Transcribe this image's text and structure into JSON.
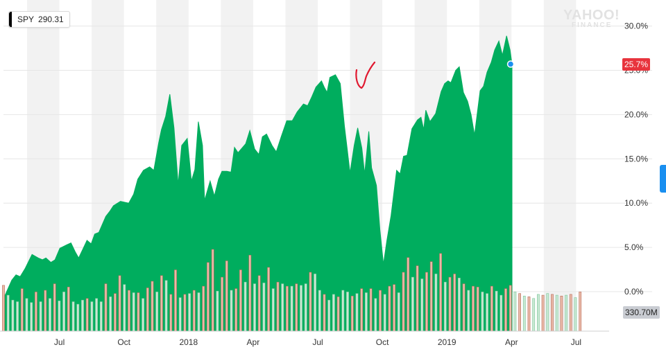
{
  "ticker": {
    "symbol": "SPY",
    "price": "290.31"
  },
  "watermark": {
    "line1": "YAHOO!",
    "line2": "FINANCE"
  },
  "current_badge": "25.7%",
  "volume_badge": "330.70M",
  "colors": {
    "area": "#00ad5e",
    "band": "#f2f2f2",
    "current": "#e8343d",
    "marker": "#1a8ff0",
    "annotation": "#e0182f",
    "volume_up": "#c8e7d2",
    "volume_down": "#e9b9a8"
  },
  "chart_data": {
    "type": "area",
    "title": "",
    "xlabel": "",
    "ylabel": "",
    "y_axis_side": "right",
    "y_unit": "%",
    "ylim": [
      -2,
      31
    ],
    "y_ticks": [
      0,
      5,
      10,
      15,
      20,
      25,
      30
    ],
    "y_tick_labels": [
      "0.0%",
      "5.0%",
      "10.0%",
      "15.0%",
      "20.0%",
      "25.0%",
      "30.0%"
    ],
    "x_range": [
      2017.2836,
      2019.6278
    ],
    "x_ticks": [
      {
        "x": 2017.5,
        "label": "Jul"
      },
      {
        "x": 2017.75,
        "label": "Oct"
      },
      {
        "x": 2018.0,
        "label": "2018"
      },
      {
        "x": 2018.25,
        "label": "Apr"
      },
      {
        "x": 2018.5,
        "label": "Jul"
      },
      {
        "x": 2018.75,
        "label": "Oct"
      },
      {
        "x": 2019.0,
        "label": "2019"
      },
      {
        "x": 2019.25,
        "label": "Apr"
      },
      {
        "x": 2019.5,
        "label": "Jul"
      }
    ],
    "grid": true,
    "legend": "none",
    "series": [
      {
        "values": [
          [
            2017.2836,
            -0.8
          ],
          [
            2017.3159,
            1.3
          ],
          [
            2017.3321,
            1.9
          ],
          [
            2017.3483,
            1.7
          ],
          [
            2017.3672,
            2.6
          ],
          [
            2017.3941,
            4.2
          ],
          [
            2017.4184,
            3.8
          ],
          [
            2017.4345,
            3.6
          ],
          [
            2017.448,
            3.8
          ],
          [
            2017.4669,
            3.3
          ],
          [
            2017.483,
            3.6
          ],
          [
            2017.5019,
            4.9
          ],
          [
            2017.5289,
            5.3
          ],
          [
            2017.545,
            5.5
          ],
          [
            2017.5612,
            4.5
          ],
          [
            2017.5746,
            3.8
          ],
          [
            2017.5908,
            4.8
          ],
          [
            2017.607,
            5.8
          ],
          [
            2017.6231,
            5.4
          ],
          [
            2017.6366,
            6.5
          ],
          [
            2017.6527,
            6.7
          ],
          [
            2017.6797,
            8.5
          ],
          [
            2017.6958,
            9.1
          ],
          [
            2017.7093,
            9.7
          ],
          [
            2017.7362,
            10.2
          ],
          [
            2017.7685,
            10.0
          ],
          [
            2017.7874,
            11.0
          ],
          [
            2017.8035,
            12.7
          ],
          [
            2017.8251,
            13.7
          ],
          [
            2017.8493,
            14.1
          ],
          [
            2017.8655,
            13.7
          ],
          [
            2017.8843,
            16.8
          ],
          [
            2017.8951,
            18.3
          ],
          [
            2017.9113,
            19.8
          ],
          [
            2017.9274,
            22.3
          ],
          [
            2017.9436,
            18.5
          ],
          [
            2017.9598,
            12.1
          ],
          [
            2017.9733,
            16.5
          ],
          [
            2017.9948,
            17.3
          ],
          [
            2018.011,
            12.5
          ],
          [
            2018.0244,
            13.8
          ],
          [
            2018.0379,
            19.2
          ],
          [
            2018.054,
            16.5
          ],
          [
            2018.0621,
            10.3
          ],
          [
            2018.0836,
            12.5
          ],
          [
            2018.0998,
            10.8
          ],
          [
            2018.116,
            12.7
          ],
          [
            2018.1294,
            13.6
          ],
          [
            2018.1483,
            13.6
          ],
          [
            2018.1644,
            13.5
          ],
          [
            2018.1779,
            16.3
          ],
          [
            2018.1914,
            15.7
          ],
          [
            2018.221,
            16.7
          ],
          [
            2018.2372,
            18.2
          ],
          [
            2018.256,
            16.1
          ],
          [
            2018.2722,
            15.5
          ],
          [
            2018.2857,
            17.5
          ],
          [
            2018.3018,
            17.8
          ],
          [
            2018.3234,
            16.5
          ],
          [
            2018.3395,
            15.8
          ],
          [
            2018.3584,
            17.5
          ],
          [
            2018.3799,
            19.3
          ],
          [
            2018.4015,
            19.3
          ],
          [
            2018.4203,
            20.3
          ],
          [
            2018.4446,
            21.2
          ],
          [
            2018.4607,
            21.0
          ],
          [
            2018.4769,
            22.0
          ],
          [
            2018.493,
            23.1
          ],
          [
            2018.5146,
            23.8
          ],
          [
            2018.5253,
            23.1
          ],
          [
            2018.5361,
            22.5
          ],
          [
            2018.5469,
            24.2
          ],
          [
            2018.5684,
            24.5
          ],
          [
            2018.5873,
            23.5
          ],
          [
            2018.6034,
            18.7
          ],
          [
            2018.6142,
            16.1
          ],
          [
            2018.6249,
            13.4
          ],
          [
            2018.6411,
            16.5
          ],
          [
            2018.6546,
            18.5
          ],
          [
            2018.6707,
            16.2
          ],
          [
            2018.6815,
            13.3
          ],
          [
            2018.6976,
            18.1
          ],
          [
            2018.7084,
            14.0
          ],
          [
            2018.7272,
            12.0
          ],
          [
            2018.7407,
            7.0
          ],
          [
            2018.7542,
            3.1
          ],
          [
            2018.7676,
            5.8
          ],
          [
            2018.7838,
            8.6
          ],
          [
            2018.8053,
            13.7
          ],
          [
            2018.8188,
            13.3
          ],
          [
            2018.8323,
            15.3
          ],
          [
            2018.8457,
            15.4
          ],
          [
            2018.8646,
            18.4
          ],
          [
            2018.8861,
            19.4
          ],
          [
            2018.8996,
            19.7
          ],
          [
            2018.9104,
            18.3
          ],
          [
            2018.9184,
            20.5
          ],
          [
            2018.9346,
            19.2
          ],
          [
            2018.9561,
            20.1
          ],
          [
            2018.9777,
            22.6
          ],
          [
            2018.9911,
            23.5
          ],
          [
            2019.0046,
            23.8
          ],
          [
            2019.0154,
            23.6
          ],
          [
            2019.0342,
            25.0
          ],
          [
            2019.0477,
            25.4
          ],
          [
            2019.0638,
            22.5
          ],
          [
            2019.08,
            21.5
          ],
          [
            2019.0935,
            20.0
          ],
          [
            2019.1069,
            17.7
          ],
          [
            2019.1285,
            22.7
          ],
          [
            2019.1419,
            23.2
          ],
          [
            2019.1554,
            24.8
          ],
          [
            2019.1716,
            25.9
          ],
          [
            2019.185,
            27.3
          ],
          [
            2019.2012,
            28.3
          ],
          [
            2019.2147,
            26.7
          ],
          [
            2019.2308,
            28.9
          ],
          [
            2019.2443,
            27.3
          ],
          [
            2019.252,
            25.7
          ]
        ]
      }
    ],
    "current": {
      "x": 2019.252,
      "y": 25.7,
      "label": "25.7%"
    },
    "volume": {
      "label": "330.70M",
      "x_start": 2017.2836,
      "x_step": 0.018,
      "rel_height": [
        0.56,
        0.44,
        0.38,
        0.36,
        0.52,
        0.4,
        0.35,
        0.48,
        0.36,
        0.5,
        0.4,
        0.58,
        0.37,
        0.48,
        0.54,
        0.36,
        0.33,
        0.38,
        0.4,
        0.36,
        0.4,
        0.36,
        0.58,
        0.42,
        0.46,
        0.68,
        0.57,
        0.5,
        0.47,
        0.47,
        0.4,
        0.53,
        0.61,
        0.48,
        0.68,
        0.62,
        0.45,
        0.75,
        0.41,
        0.45,
        0.46,
        0.5,
        0.47,
        0.55,
        0.84,
        1.0,
        0.49,
        0.66,
        0.86,
        0.5,
        0.52,
        0.75,
        0.6,
        0.93,
        0.58,
        0.68,
        0.59,
        0.78,
        0.52,
        0.6,
        0.58,
        0.55,
        0.55,
        0.58,
        0.56,
        0.58,
        0.72,
        0.7,
        0.5,
        0.45,
        0.38,
        0.45,
        0.42,
        0.5,
        0.48,
        0.43,
        0.46,
        0.52,
        0.47,
        0.52,
        0.4,
        0.5,
        0.45,
        0.55,
        0.57,
        0.47,
        0.72,
        0.9,
        0.66,
        0.8,
        0.64,
        0.72,
        0.85,
        0.7,
        0.95,
        0.6,
        0.66,
        0.7,
        0.65,
        0.58,
        0.5,
        0.55,
        0.54,
        0.48,
        0.46,
        0.55,
        0.49,
        0.44,
        0.52,
        0.56,
        0.48,
        0.46,
        0.43,
        0.42,
        0.4,
        0.45,
        0.44,
        0.46,
        0.45,
        0.44,
        0.43,
        0.44,
        0.45,
        0.41,
        0.48
      ],
      "down": [
        1,
        0,
        0,
        0,
        1,
        0,
        0,
        1,
        0,
        1,
        0,
        1,
        0,
        0,
        1,
        0,
        0,
        0,
        1,
        0,
        0,
        0,
        1,
        0,
        1,
        1,
        0,
        1,
        0,
        1,
        0,
        1,
        1,
        0,
        1,
        0,
        1,
        1,
        0,
        1,
        0,
        1,
        0,
        1,
        1,
        1,
        0,
        1,
        1,
        0,
        1,
        1,
        0,
        1,
        0,
        1,
        0,
        1,
        0,
        1,
        0,
        1,
        0,
        1,
        0,
        0,
        1,
        0,
        0,
        1,
        0,
        0,
        1,
        0,
        0,
        1,
        0,
        1,
        0,
        1,
        0,
        1,
        0,
        1,
        1,
        0,
        1,
        1,
        0,
        1,
        0,
        1,
        1,
        0,
        1,
        0,
        1,
        1,
        0,
        1,
        0,
        1,
        1,
        0,
        0,
        1,
        0,
        0,
        1,
        1,
        0,
        1,
        0,
        1,
        0,
        0,
        1,
        0,
        1,
        0,
        1,
        0,
        1,
        0,
        1
      ]
    }
  }
}
